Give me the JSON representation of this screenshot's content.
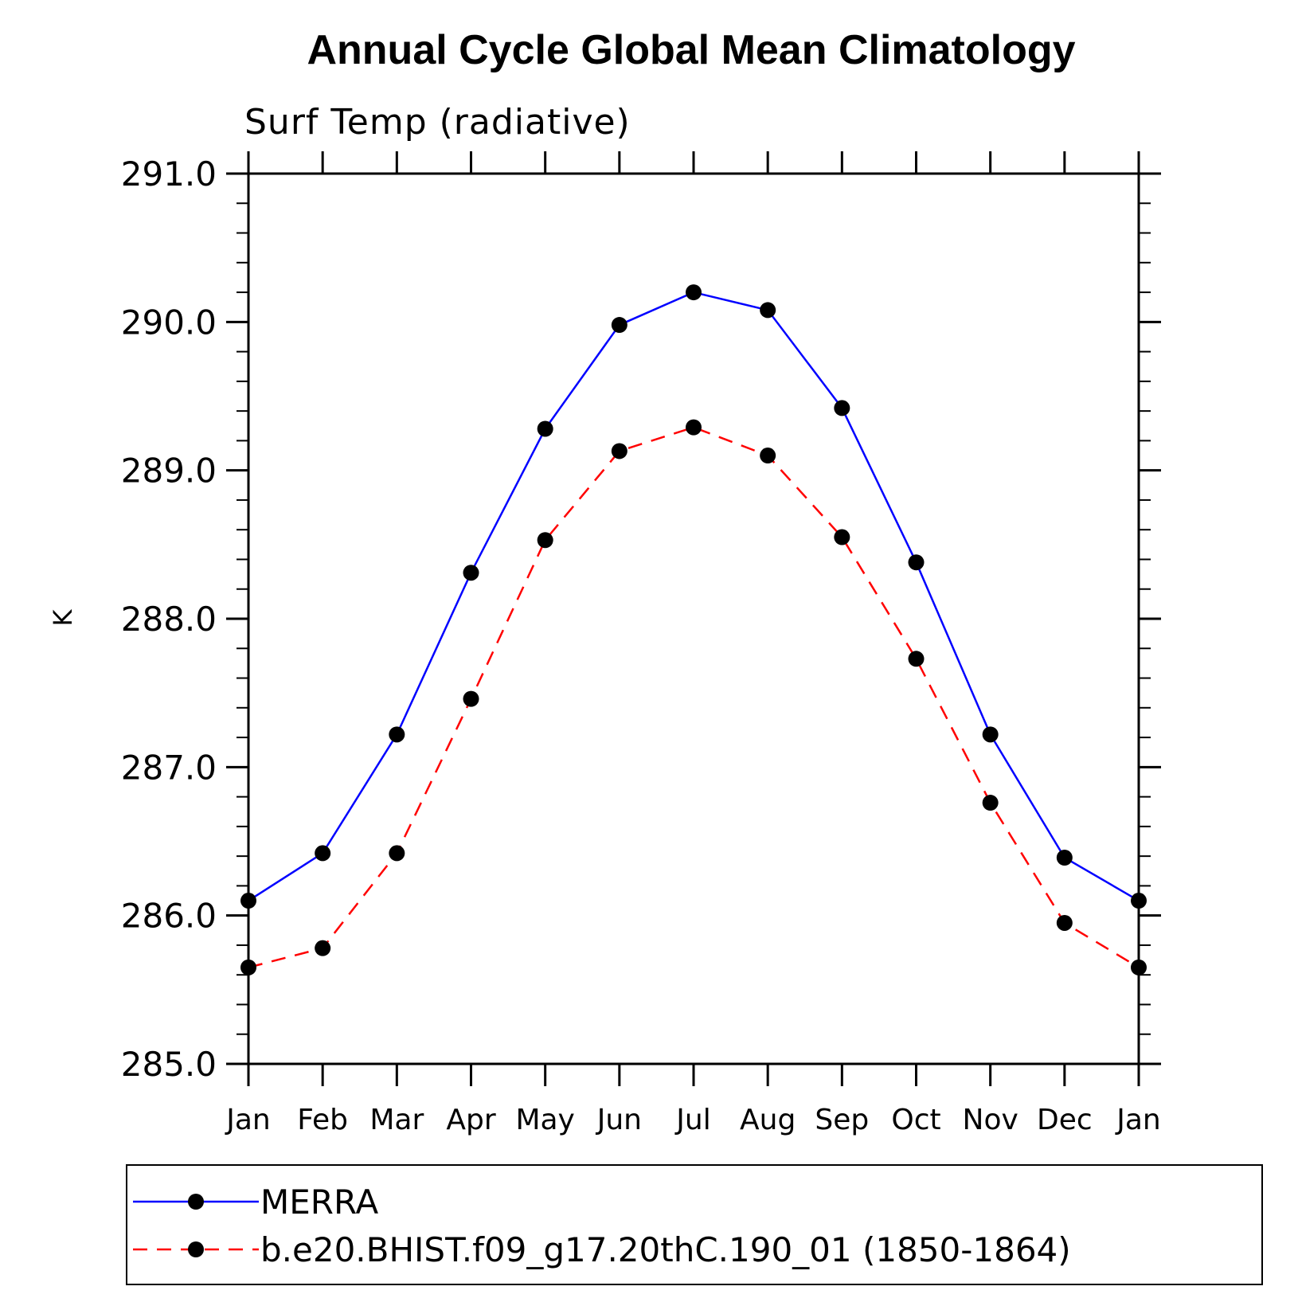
{
  "chart_data": {
    "type": "line",
    "title": "Annual Cycle Global Mean Climatology",
    "subtitle": "Surf Temp (radiative)",
    "xlabel": "",
    "ylabel": "K",
    "categories": [
      "Jan",
      "Feb",
      "Mar",
      "Apr",
      "May",
      "Jun",
      "Jul",
      "Aug",
      "Sep",
      "Oct",
      "Nov",
      "Dec",
      "Jan"
    ],
    "ylim": [
      285.0,
      291.0
    ],
    "yticks": [
      "285.0",
      "286.0",
      "287.0",
      "288.0",
      "289.0",
      "290.0",
      "291.0"
    ],
    "grid": false,
    "legend_position": "bottom",
    "series": [
      {
        "name": "MERRA",
        "color": "#0000ff",
        "dashed": false,
        "marker": "circle",
        "values": [
          286.1,
          286.42,
          287.22,
          288.31,
          289.28,
          289.98,
          290.2,
          290.08,
          289.42,
          288.38,
          287.22,
          286.39,
          286.1
        ]
      },
      {
        "name": "b.e20.BHIST.f09_g17.20thC.190_01 (1850-1864)",
        "color": "#ff0000",
        "dashed": true,
        "marker": "circle",
        "values": [
          285.65,
          285.78,
          286.42,
          287.46,
          288.53,
          289.13,
          289.29,
          289.1,
          288.55,
          287.73,
          286.76,
          285.95,
          285.65
        ]
      }
    ]
  }
}
